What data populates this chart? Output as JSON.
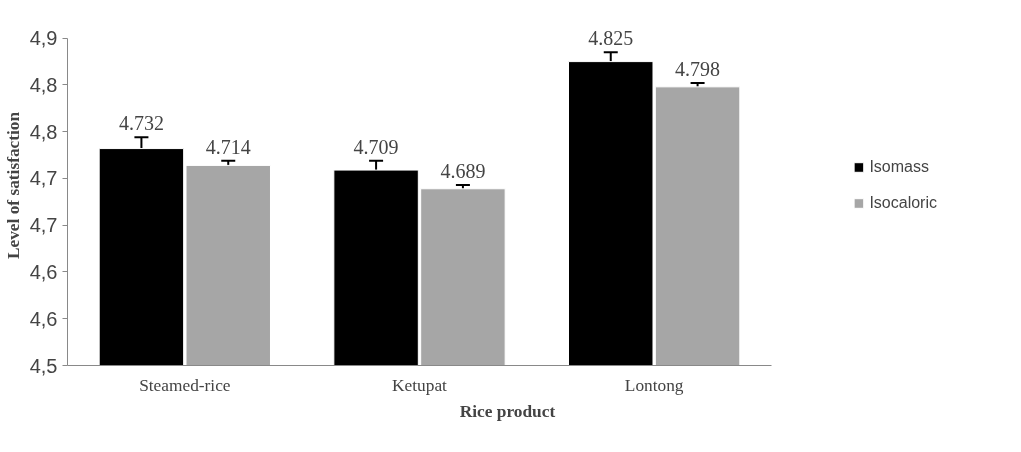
{
  "chart_data": {
    "type": "bar",
    "xlabel": "Rice product",
    "ylabel": "Level of satisfaction",
    "categories": [
      "Steamed-rice",
      "Ketupat",
      "Lontong"
    ],
    "series": [
      {
        "name": "Isomass",
        "color": "#000000",
        "values": [
          4.732,
          4.709,
          4.825
        ],
        "errors": [
          0.012,
          0.01,
          0.01
        ]
      },
      {
        "name": "Isocaloric",
        "color": "#a6a6a6",
        "values": [
          4.714,
          4.689,
          4.798
        ],
        "errors": [
          0.005,
          0.004,
          0.004
        ]
      }
    ],
    "ylim": [
      4.5,
      4.85
    ],
    "yticks": [
      {
        "value": 4.5,
        "label": "4,5"
      },
      {
        "value": 4.55,
        "label": "4,6"
      },
      {
        "value": 4.6,
        "label": "4,6"
      },
      {
        "value": 4.65,
        "label": "4,7"
      },
      {
        "value": 4.7,
        "label": "4,7"
      },
      {
        "value": 4.75,
        "label": "4,8"
      },
      {
        "value": 4.8,
        "label": "4,8"
      },
      {
        "value": 4.85,
        "label": "4,9"
      }
    ],
    "data_labels": true,
    "grid": false,
    "legend": "right"
  }
}
